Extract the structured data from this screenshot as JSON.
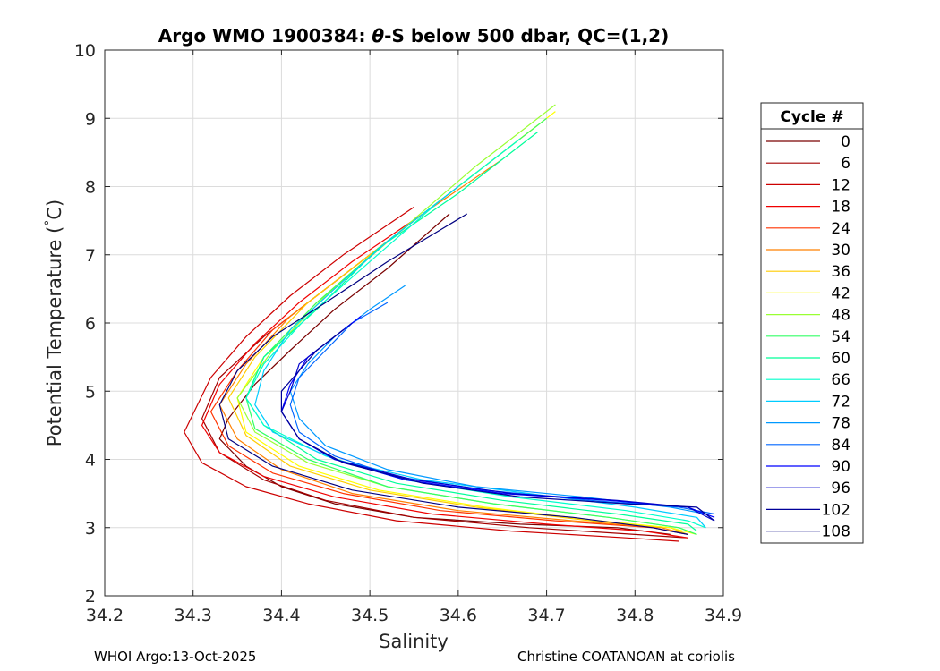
{
  "footer": {
    "left": "WHOI Argo:13-Oct-2025",
    "right": "Christine COATANOAN at coriolis"
  },
  "chart_data": {
    "type": "line",
    "title_parts": [
      "Argo WMO 1900384: ",
      "θ",
      "-S below 500 dbar,  QC=(1,2)"
    ],
    "xlabel": "Salinity",
    "ylabel": "Potential Temperature (°C)",
    "ylabel_parts": [
      "Potential Temperature (",
      "°",
      "C)"
    ],
    "xlim": [
      34.2,
      34.9
    ],
    "ylim": [
      2,
      10
    ],
    "xticks": [
      "34.2",
      "34.3",
      "34.4",
      "34.5",
      "34.6",
      "34.7",
      "34.8",
      "34.9"
    ],
    "yticks": [
      "2",
      "3",
      "4",
      "5",
      "6",
      "7",
      "8",
      "9",
      "10"
    ],
    "grid": true,
    "legend": {
      "title": "Cycle #",
      "placement": "right",
      "entries": [
        "0",
        "6",
        "12",
        "18",
        "24",
        "30",
        "36",
        "42",
        "48",
        "54",
        "60",
        "66",
        "72",
        "78",
        "84",
        "90",
        "96",
        "102",
        "108"
      ],
      "colors": [
        "#7a0000",
        "#a30000",
        "#cc0000",
        "#f00000",
        "#ff3300",
        "#ff8000",
        "#ffcc00",
        "#ffff00",
        "#99ff33",
        "#33ff66",
        "#00ff99",
        "#00ffcc",
        "#00ccff",
        "#0099ff",
        "#0066ff",
        "#0000ff",
        "#0000cc",
        "#000099",
        "#000080"
      ]
    },
    "series": [
      {
        "name": "0",
        "s": [
          34.59,
          34.52,
          34.46,
          34.41,
          34.37,
          34.34,
          34.33,
          34.36,
          34.4,
          34.46,
          34.55,
          34.67,
          34.78,
          34.84
        ],
        "t": [
          7.6,
          6.8,
          6.2,
          5.6,
          5.1,
          4.6,
          4.3,
          3.9,
          3.6,
          3.35,
          3.15,
          3.05,
          3.0,
          2.9
        ]
      },
      {
        "name": "6",
        "s": [
          34.58,
          34.5,
          34.44,
          34.38,
          34.33,
          34.31,
          34.33,
          34.38,
          34.45,
          34.55,
          34.68,
          34.8,
          34.86
        ],
        "t": [
          7.8,
          7.0,
          6.4,
          5.8,
          5.2,
          4.6,
          4.1,
          3.7,
          3.4,
          3.15,
          3.0,
          2.9,
          2.85
        ]
      },
      {
        "name": "12",
        "s": [
          34.55,
          34.47,
          34.41,
          34.36,
          34.32,
          34.29,
          34.31,
          34.36,
          34.43,
          34.53,
          34.66,
          34.79,
          34.85
        ],
        "t": [
          7.7,
          7.0,
          6.4,
          5.8,
          5.2,
          4.4,
          3.95,
          3.6,
          3.35,
          3.1,
          2.95,
          2.85,
          2.8
        ]
      },
      {
        "name": "18",
        "s": [
          34.56,
          34.48,
          34.42,
          34.37,
          34.33,
          34.31,
          34.33,
          34.38,
          34.46,
          34.57,
          34.7,
          34.81,
          34.86
        ],
        "t": [
          7.6,
          6.9,
          6.3,
          5.7,
          5.1,
          4.5,
          4.1,
          3.75,
          3.45,
          3.2,
          3.05,
          2.95,
          2.85
        ]
      },
      {
        "name": "24",
        "s": [
          34.6,
          34.52,
          34.45,
          34.39,
          34.35,
          34.32,
          34.34,
          34.39,
          34.47,
          34.58,
          34.71,
          34.82,
          34.86
        ],
        "t": [
          8.0,
          7.2,
          6.5,
          5.9,
          5.3,
          4.7,
          4.2,
          3.8,
          3.5,
          3.25,
          3.1,
          3.0,
          2.9
        ]
      },
      {
        "name": "30",
        "s": [
          34.65,
          34.56,
          34.48,
          34.41,
          34.36,
          34.33,
          34.35,
          34.4,
          34.48,
          34.6,
          34.73,
          34.83,
          34.86
        ],
        "t": [
          8.4,
          7.6,
          6.8,
          6.1,
          5.4,
          4.8,
          4.3,
          3.85,
          3.5,
          3.25,
          3.1,
          3.0,
          2.9
        ]
      },
      {
        "name": "36",
        "s": [
          34.69,
          34.6,
          34.51,
          34.43,
          34.37,
          34.34,
          34.36,
          34.41,
          34.5,
          34.62,
          34.75,
          34.84,
          34.86
        ],
        "t": [
          8.9,
          8.0,
          7.1,
          6.3,
          5.5,
          4.9,
          4.35,
          3.9,
          3.55,
          3.3,
          3.1,
          3.0,
          2.9
        ]
      },
      {
        "name": "42",
        "s": [
          34.71,
          34.62,
          34.52,
          34.44,
          34.38,
          34.35,
          34.36,
          34.42,
          34.51,
          34.63,
          34.76,
          34.84,
          34.87
        ],
        "t": [
          9.1,
          8.2,
          7.2,
          6.3,
          5.5,
          4.9,
          4.4,
          3.9,
          3.55,
          3.3,
          3.1,
          3.0,
          2.9
        ]
      },
      {
        "name": "48",
        "s": [
          34.71,
          34.62,
          34.53,
          34.45,
          34.39,
          34.35,
          34.37,
          34.43,
          34.52,
          34.64,
          34.77,
          34.85,
          34.87
        ],
        "t": [
          9.2,
          8.3,
          7.3,
          6.4,
          5.6,
          4.9,
          4.4,
          3.95,
          3.6,
          3.35,
          3.15,
          3.0,
          2.9
        ]
      },
      {
        "name": "54",
        "s": [
          34.7,
          34.61,
          34.52,
          34.44,
          34.38,
          34.36,
          34.37,
          34.43,
          34.52,
          34.64,
          34.77,
          34.85,
          34.87
        ],
        "t": [
          9.0,
          8.1,
          7.2,
          6.3,
          5.5,
          4.9,
          4.45,
          4.0,
          3.6,
          3.35,
          3.15,
          3.0,
          2.9
        ]
      },
      {
        "name": "60",
        "s": [
          34.69,
          34.6,
          34.51,
          34.44,
          34.38,
          34.36,
          34.38,
          34.44,
          34.53,
          34.65,
          34.78,
          34.86,
          34.87
        ],
        "t": [
          8.8,
          7.9,
          7.1,
          6.2,
          5.5,
          4.9,
          4.5,
          4.0,
          3.65,
          3.4,
          3.2,
          3.05,
          2.95
        ]
      },
      {
        "name": "66",
        "s": [
          34.67,
          34.58,
          34.5,
          34.43,
          34.38,
          34.36,
          34.38,
          34.45,
          34.54,
          34.66,
          34.79,
          34.86,
          34.88
        ],
        "t": [
          8.7,
          7.8,
          6.9,
          6.1,
          5.4,
          4.9,
          4.5,
          4.05,
          3.7,
          3.45,
          3.25,
          3.1,
          3.0
        ]
      },
      {
        "name": "72",
        "s": [
          34.6,
          34.52,
          34.46,
          34.41,
          34.38,
          34.37,
          34.39,
          34.46,
          34.56,
          34.68,
          34.8,
          34.87,
          34.88
        ],
        "t": [
          8.0,
          7.2,
          6.5,
          5.9,
          5.3,
          4.8,
          4.4,
          4.0,
          3.7,
          3.5,
          3.3,
          3.15,
          3.0
        ]
      },
      {
        "name": "78",
        "s": [
          34.54,
          34.5,
          34.46,
          34.43,
          34.41,
          34.42,
          34.45,
          34.52,
          34.62,
          34.74,
          34.84,
          34.88
        ],
        "t": [
          6.55,
          6.2,
          5.8,
          5.4,
          5.0,
          4.6,
          4.2,
          3.85,
          3.6,
          3.45,
          3.3,
          3.2
        ]
      },
      {
        "name": "84",
        "s": [
          34.52,
          34.48,
          34.45,
          34.42,
          34.41,
          34.42,
          34.46,
          34.53,
          34.63,
          34.75,
          34.85,
          34.89
        ],
        "t": [
          6.3,
          6.0,
          5.6,
          5.2,
          4.8,
          4.4,
          4.05,
          3.75,
          3.55,
          3.4,
          3.3,
          3.2
        ]
      },
      {
        "name": "90",
        "s": [
          34.49,
          34.46,
          34.43,
          34.41,
          34.4,
          34.42,
          34.46,
          34.54,
          34.65,
          34.77,
          34.86,
          34.89
        ],
        "t": [
          6.1,
          5.8,
          5.5,
          5.1,
          4.7,
          4.3,
          4.0,
          3.7,
          3.5,
          3.4,
          3.3,
          3.15
        ]
      },
      {
        "name": "96",
        "s": [
          34.48,
          34.45,
          34.42,
          34.41,
          34.4,
          34.42,
          34.46,
          34.55,
          34.66,
          34.78,
          34.86,
          34.89
        ],
        "t": [
          6.0,
          5.7,
          5.4,
          5.0,
          4.7,
          4.3,
          4.0,
          3.7,
          3.5,
          3.4,
          3.3,
          3.1
        ]
      },
      {
        "name": "102",
        "s": [
          34.47,
          34.44,
          34.42,
          34.4,
          34.4,
          34.42,
          34.47,
          34.56,
          34.67,
          34.79,
          34.87,
          34.89
        ],
        "t": [
          5.9,
          5.6,
          5.3,
          5.0,
          4.7,
          4.3,
          3.95,
          3.65,
          3.45,
          3.35,
          3.3,
          3.1
        ]
      },
      {
        "name": "108",
        "s": [
          34.61,
          34.52,
          34.45,
          34.39,
          34.35,
          34.33,
          34.34,
          34.39,
          34.48,
          34.6,
          34.73,
          34.82,
          34.86
        ],
        "t": [
          7.6,
          6.9,
          6.3,
          5.8,
          5.3,
          4.8,
          4.3,
          3.9,
          3.55,
          3.3,
          3.15,
          3.0,
          2.9
        ]
      }
    ]
  }
}
